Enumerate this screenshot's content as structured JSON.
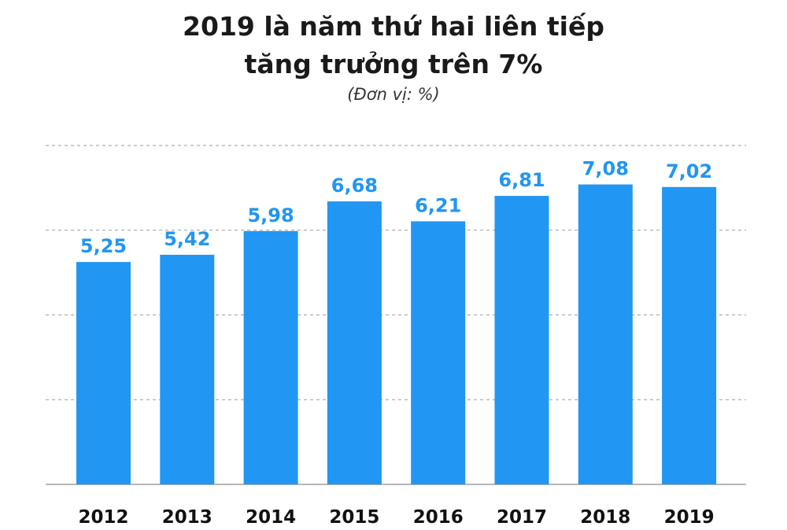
{
  "chart_data": {
    "type": "bar",
    "title_line1": "2019 là năm thứ hai liên tiếp",
    "title_line2": "tăng trưởng trên 7%",
    "subtitle": "(Đơn vị: %)",
    "categories": [
      "2012",
      "2013",
      "2014",
      "2015",
      "2016",
      "2017",
      "2018",
      "2019"
    ],
    "values": [
      5.25,
      5.42,
      5.98,
      6.68,
      6.21,
      6.81,
      7.08,
      7.02
    ],
    "data_labels": [
      "5,25",
      "5,42",
      "5,98",
      "6,68",
      "6,21",
      "6,81",
      "7,08",
      "7,02"
    ],
    "ylim": [
      0,
      8
    ],
    "gridlines": [
      2,
      4,
      6,
      8
    ],
    "grid": true,
    "bar_color": "#2196F3",
    "label_color": "#2196F3"
  }
}
